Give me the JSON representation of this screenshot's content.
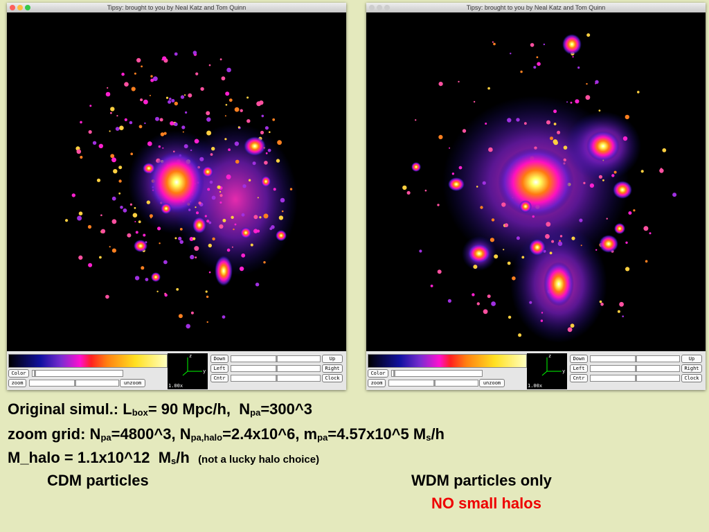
{
  "windows": [
    {
      "title": "Tipsy: brought to you by Neal Katz and Tom Quinn",
      "color": "Color",
      "zoom": "zoom",
      "unzoom": "unzoom",
      "down": "Down",
      "up": "Up",
      "left": "Left",
      "right": "Right",
      "cntr": "Cntr",
      "clock": "Clock",
      "scale": "1.00x",
      "axis_z": "z",
      "axis_y": "y"
    },
    {
      "title": "Tipsy: brought to you by Neal Katz and Tom Quinn",
      "color": "Color",
      "zoom": "zoom",
      "unzoom": "unzoom",
      "down": "Down",
      "up": "Up",
      "left": "Left",
      "right": "Right",
      "cntr": "Cntr",
      "clock": "Clock",
      "scale": "1.00x",
      "axis_z": "z",
      "axis_y": "y"
    }
  ],
  "caption": {
    "line1": [
      "Original simul.: L",
      "box",
      "= 90 Mpc/h,  N",
      "pa",
      "=300^3"
    ],
    "line2": [
      "zoom grid: N",
      "pa",
      "=4800^3, N",
      "pa,halo",
      "=2.4x10^6, m",
      "pa",
      "=4.57x10^5 M",
      "s",
      "/h"
    ],
    "line3": [
      "M_halo = 1.1x10^12  M",
      "s",
      "/h",
      "(not a lucky halo choice)"
    ],
    "cdm_label": "CDM particles",
    "wdm_label": "WDM particles only",
    "wdm_note": "NO small halos"
  }
}
